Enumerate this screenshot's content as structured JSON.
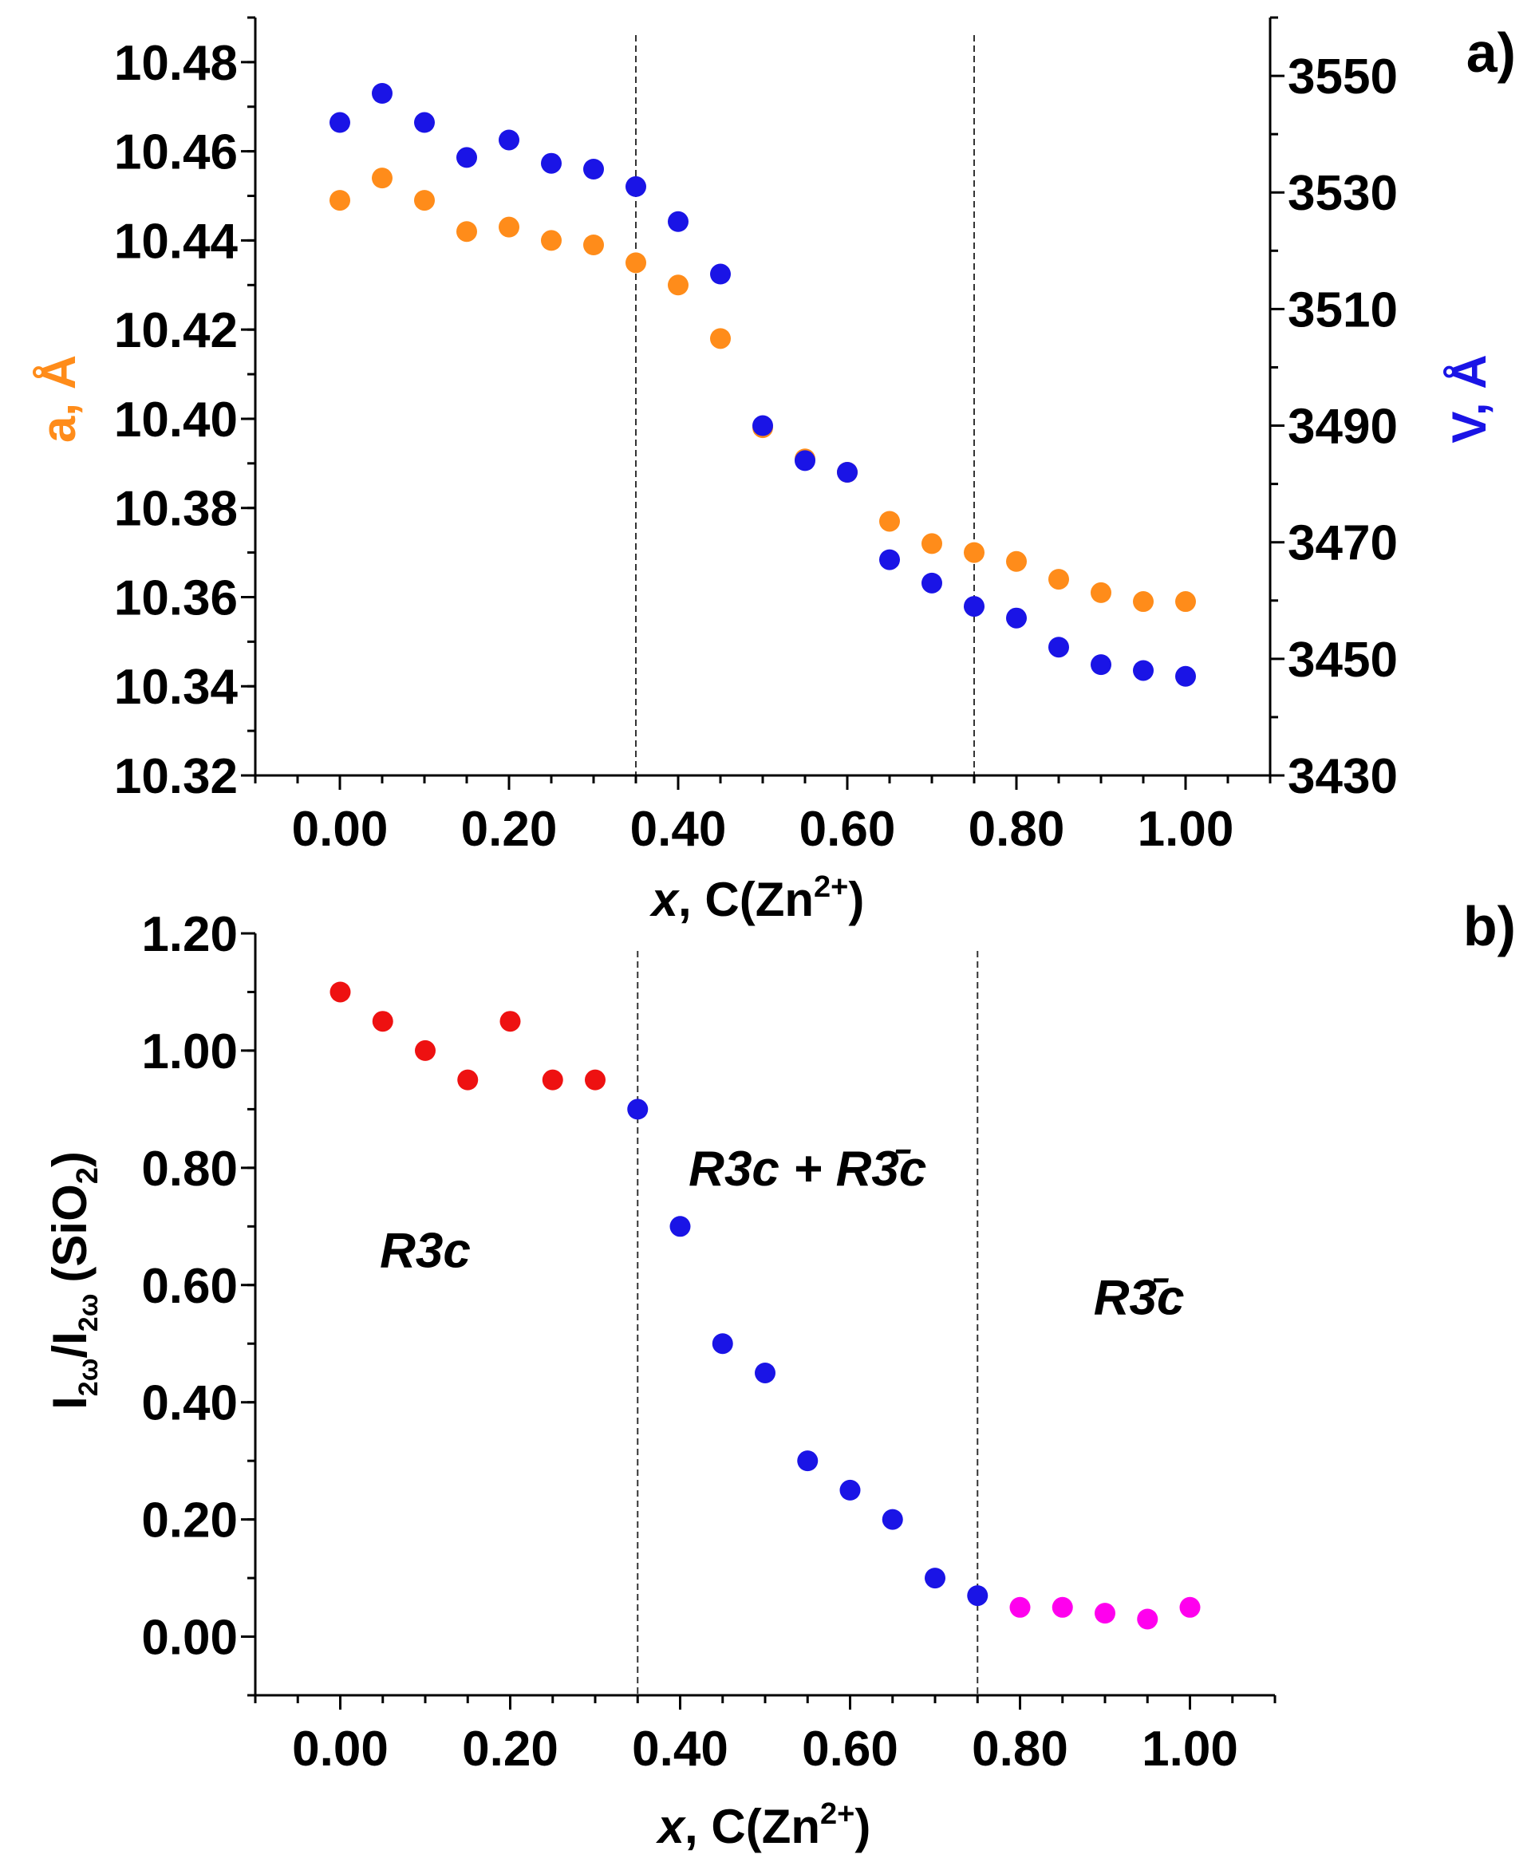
{
  "chart_data": [
    {
      "type": "scatter",
      "panel_label": "a)",
      "xlabel": {
        "italic": "x",
        "main": ", C(Zn",
        "sup": "2+",
        "tail": ")"
      },
      "ylabel_left": "a, Å",
      "ylabel_right": "V, Å",
      "xlim": [
        -0.1,
        1.1
      ],
      "ylim_left": [
        10.32,
        10.49
      ],
      "ylim_right": [
        3430,
        3560
      ],
      "x_ticks": [
        0,
        0.2,
        0.4,
        0.6,
        0.8,
        1.0
      ],
      "x_tick_labels": [
        "0.00",
        "0.20",
        "0.40",
        "0.60",
        "0.80",
        "1.00"
      ],
      "y_ticks_left": [
        10.32,
        10.34,
        10.36,
        10.38,
        10.4,
        10.42,
        10.44,
        10.46,
        10.48
      ],
      "y_tick_labels_left": [
        "10.32",
        "10.34",
        "10.36",
        "10.38",
        "10.40",
        "10.42",
        "10.44",
        "10.46",
        "10.48"
      ],
      "y_ticks_right": [
        3430,
        3450,
        3470,
        3490,
        3510,
        3530,
        3550
      ],
      "y_tick_labels_right": [
        "3430",
        "3450",
        "3470",
        "3490",
        "3510",
        "3530",
        "3550"
      ],
      "vlines": [
        0.35,
        0.75
      ],
      "series": [
        {
          "name": "a, Å",
          "axis": "left",
          "color": "#ff8c1a",
          "x": [
            0.0,
            0.05,
            0.1,
            0.15,
            0.2,
            0.25,
            0.3,
            0.35,
            0.4,
            0.45,
            0.5,
            0.55,
            0.6,
            0.65,
            0.7,
            0.75,
            0.8,
            0.85,
            0.9,
            0.95,
            1.0
          ],
          "y": [
            10.449,
            10.454,
            10.449,
            10.442,
            10.443,
            10.44,
            10.439,
            10.435,
            10.43,
            10.418,
            10.398,
            10.391,
            10.388,
            10.377,
            10.372,
            10.37,
            10.368,
            10.364,
            10.361,
            10.359,
            10.359
          ]
        },
        {
          "name": "V, Å",
          "axis": "right",
          "color": "#1a14e6",
          "x": [
            0.0,
            0.05,
            0.1,
            0.15,
            0.2,
            0.25,
            0.3,
            0.35,
            0.4,
            0.45,
            0.5,
            0.55,
            0.6,
            0.65,
            0.7,
            0.75,
            0.8,
            0.85,
            0.9,
            0.95,
            1.0
          ],
          "y": [
            3542,
            3547,
            3542,
            3536,
            3539,
            3535,
            3534,
            3531,
            3525,
            3516,
            3490,
            3484,
            3482,
            3467,
            3463,
            3459,
            3457,
            3452,
            3449,
            3448,
            3447
          ]
        }
      ]
    },
    {
      "type": "scatter",
      "panel_label": "b)",
      "xlabel": {
        "italic": "x",
        "main": ", C(Zn",
        "sup": "2+",
        "tail": ")"
      },
      "ylabel": {
        "i1": "I",
        "s1": "2ω",
        "sep": "/I",
        "s2": "2ω",
        "mid": "(SiO",
        "s3": "2",
        "tail": ")"
      },
      "xlim": [
        -0.1,
        1.1
      ],
      "ylim": [
        -0.1,
        1.2
      ],
      "x_ticks": [
        0,
        0.2,
        0.4,
        0.6,
        0.8,
        1.0
      ],
      "x_tick_labels": [
        "0.00",
        "0.20",
        "0.40",
        "0.60",
        "0.80",
        "1.00"
      ],
      "y_ticks": [
        0,
        0.2,
        0.4,
        0.6,
        0.8,
        1.0,
        1.2
      ],
      "y_tick_labels": [
        "0.00",
        "0.20",
        "0.40",
        "0.60",
        "0.80",
        "1.00",
        "1.20"
      ],
      "vlines": [
        0.35,
        0.75
      ],
      "annotations": [
        {
          "text": "R3c",
          "x": 0.1,
          "y": 0.66
        },
        {
          "text": "R3c + R3̄c",
          "x": 0.55,
          "y": 0.8
        },
        {
          "text": "R3̄c",
          "x": 0.94,
          "y": 0.58
        }
      ],
      "series": [
        {
          "name": "R3c",
          "color": "#ee1111",
          "x": [
            0.0,
            0.05,
            0.1,
            0.15,
            0.2,
            0.25,
            0.3
          ],
          "y": [
            1.1,
            1.05,
            1.0,
            0.95,
            1.05,
            0.95,
            0.95
          ]
        },
        {
          "name": "R3c + R3̄c",
          "color": "#1a14e6",
          "x": [
            0.35,
            0.4,
            0.45,
            0.5,
            0.55,
            0.6,
            0.65,
            0.7,
            0.75
          ],
          "y": [
            0.9,
            0.7,
            0.5,
            0.45,
            0.3,
            0.25,
            0.2,
            0.1,
            0.07
          ]
        },
        {
          "name": "R3̄c",
          "color": "#ff00ee",
          "x": [
            0.8,
            0.85,
            0.9,
            0.95,
            1.0
          ],
          "y": [
            0.05,
            0.05,
            0.04,
            0.03,
            0.05
          ]
        }
      ]
    }
  ]
}
